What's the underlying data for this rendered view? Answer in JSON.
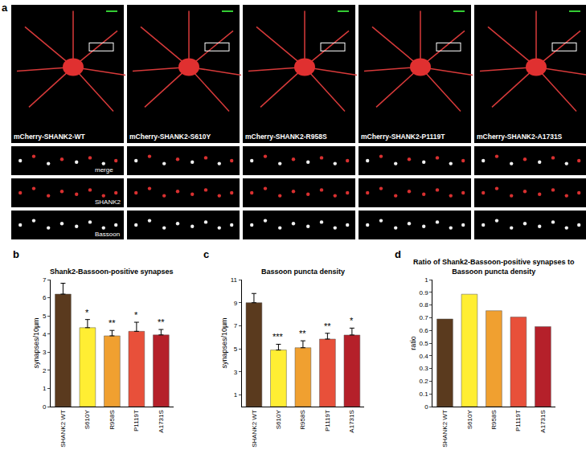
{
  "panel_a": {
    "label": "a",
    "columns": [
      "mCherry-SHANK2-WT",
      "mCherry-SHANK2-S610Y",
      "mCherry-SHANK2-R958S",
      "mCherry-SHANK2-P1119T",
      "mCherry-SHANK2-A1731S"
    ],
    "row_labels": [
      "merge",
      "SHANK2",
      "Bassoon"
    ]
  },
  "chart_data": [
    {
      "type": "bar",
      "panel": "b",
      "title": "Shank2-Bassoon-positive synapses",
      "y_label": "synapses/10µm",
      "categories": [
        "SHANK2 WT",
        "S610Y",
        "R958S",
        "P1119T",
        "A1731S"
      ],
      "values": [
        6.2,
        4.35,
        3.9,
        4.15,
        3.95
      ],
      "errors": [
        0.6,
        0.45,
        0.3,
        0.5,
        0.3
      ],
      "significance": [
        null,
        "*",
        "**",
        "*",
        "**"
      ],
      "colors": [
        "#5a3a1e",
        "#ffee33",
        "#f0a030",
        "#e8503a",
        "#b5202a"
      ],
      "ylim": [
        0,
        7
      ],
      "yticks": [
        0,
        1,
        2,
        3,
        4,
        5,
        6,
        7
      ],
      "grid": false
    },
    {
      "type": "bar",
      "panel": "c",
      "title": "Bassoon puncta density",
      "y_label": "synapses/10µm",
      "categories": [
        "SHANK2 WT",
        "S610Y",
        "R958S",
        "P1119T",
        "A1731S"
      ],
      "values": [
        9.0,
        4.9,
        5.1,
        5.85,
        6.2
      ],
      "errors": [
        0.8,
        0.5,
        0.6,
        0.5,
        0.6
      ],
      "significance": [
        null,
        "***",
        "**",
        "**",
        "*"
      ],
      "colors": [
        "#5a3a1e",
        "#ffee33",
        "#f0a030",
        "#e8503a",
        "#b5202a"
      ],
      "ylim": [
        0,
        11
      ],
      "yticks": [
        1,
        3,
        5,
        7,
        9,
        11
      ],
      "grid": false
    },
    {
      "type": "bar",
      "panel": "d",
      "title": "Ratio of Shank2-Bassoon-positive synapses to\nBassoon puncta density",
      "y_label": "ratio",
      "categories": [
        "SHANK2 WT",
        "S610Y",
        "R958S",
        "P1119T",
        "A1731S"
      ],
      "values": [
        0.69,
        0.885,
        0.755,
        0.705,
        0.63
      ],
      "colors": [
        "#5a3a1e",
        "#ffee33",
        "#f0a030",
        "#e8503a",
        "#b5202a"
      ],
      "ylim": [
        0,
        1
      ],
      "yticks": [
        0,
        0.1,
        0.2,
        0.3,
        0.4,
        0.5,
        0.6,
        0.7,
        0.8,
        0.9,
        1
      ],
      "grid": false
    }
  ]
}
